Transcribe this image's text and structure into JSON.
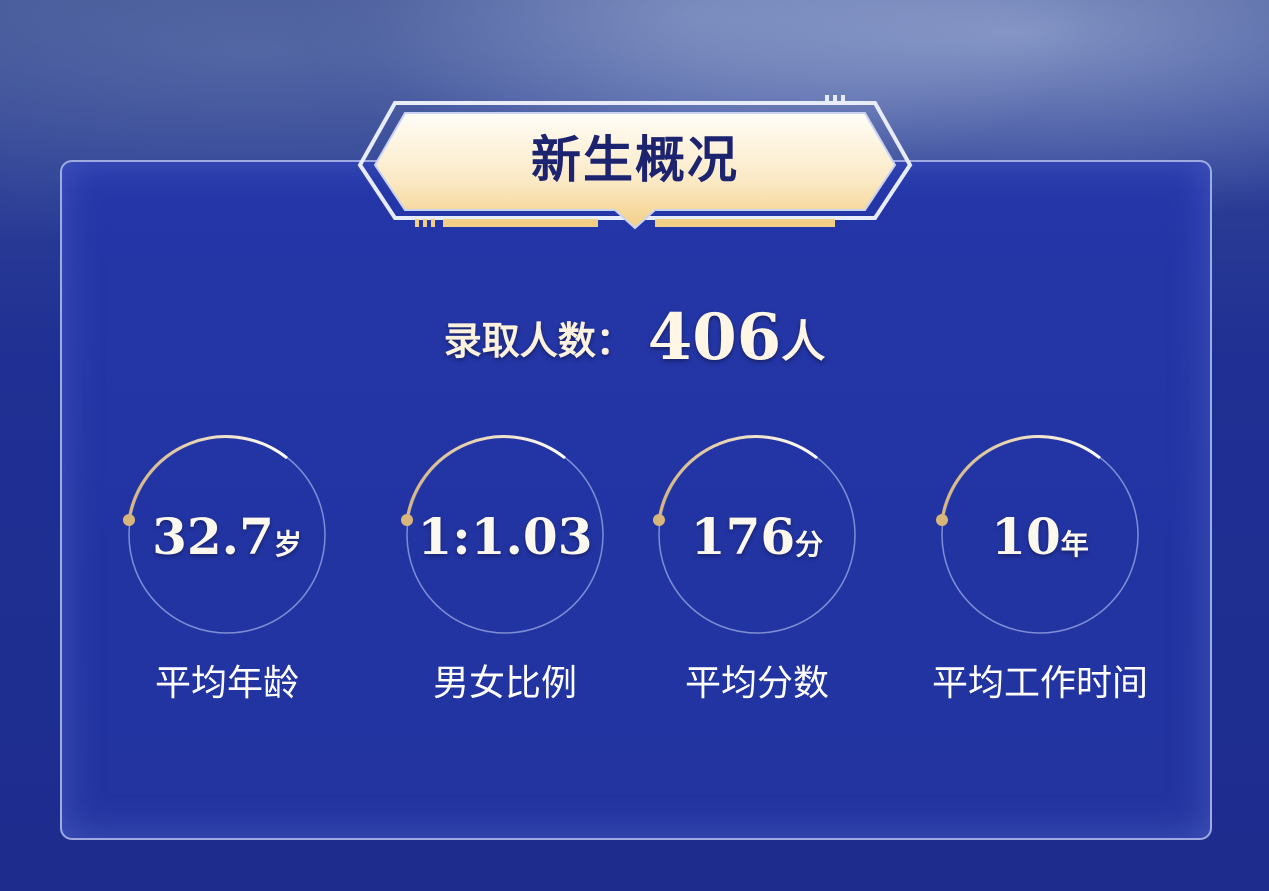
{
  "header": {
    "title": "新生概况"
  },
  "enrollment": {
    "label": "录取人数：",
    "value": "406",
    "unit": "人"
  },
  "stats": [
    {
      "value": "32.7",
      "unit": "岁",
      "label": "平均年龄"
    },
    {
      "value": "1:1.03",
      "unit": "",
      "label": "男女比例"
    },
    {
      "value": "176",
      "unit": "分",
      "label": "平均分数"
    },
    {
      "value": "10",
      "unit": "年",
      "label": "平均工作时间"
    }
  ],
  "colors": {
    "background": "#1f2f93",
    "panel": "#2436a5",
    "banner_gold": "#f7dfa6",
    "title": "#1c2470",
    "accent_dot": "#d8b57a"
  }
}
